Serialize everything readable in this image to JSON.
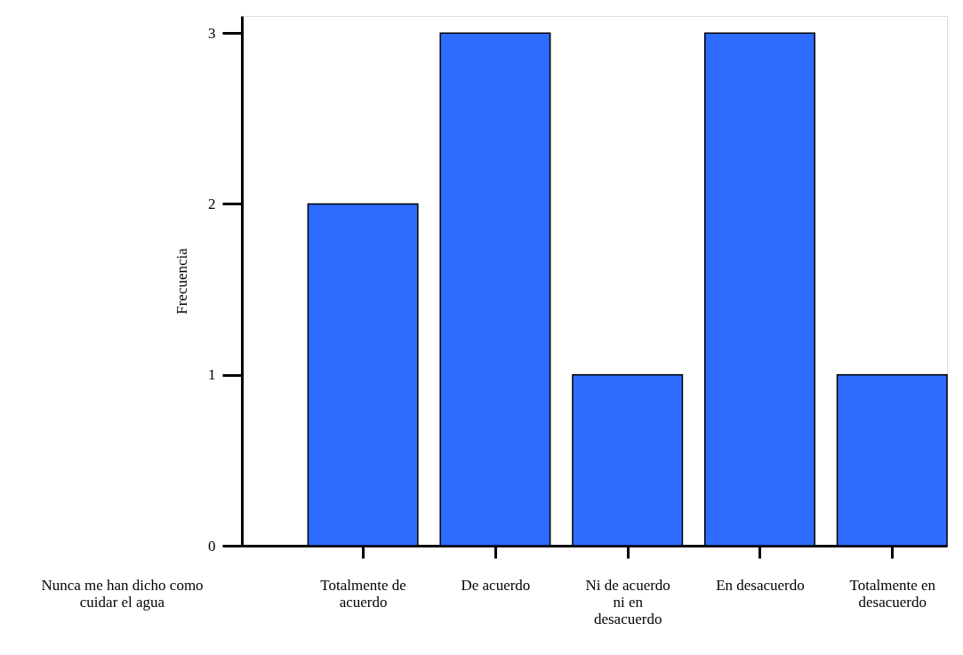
{
  "chart_data": {
    "type": "bar",
    "xlabel": "Nunca me han dicho como cuidar el agua",
    "ylabel": "Frecuencia",
    "categories": [
      "Totalmente de acuerdo",
      "De acuerdo",
      "Ni de acuerdo ni en desacuerdo",
      "En desacuerdo",
      "Totalmente en desacuerdo"
    ],
    "values": [
      2,
      3,
      1,
      3,
      1
    ],
    "color": "#2e6bff",
    "ylim": [
      0,
      3.1
    ],
    "yticks": [
      0,
      1,
      2,
      3
    ],
    "grid": false
  }
}
